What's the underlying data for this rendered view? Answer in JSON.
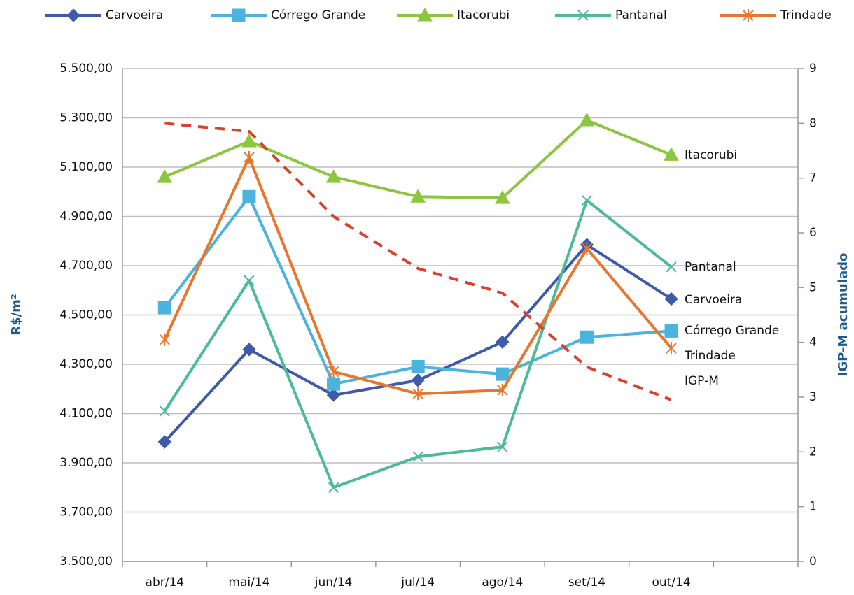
{
  "chart_data": {
    "type": "line",
    "ylabel": "R$/m²",
    "y2label": "IGP-M acumulado",
    "categories": [
      "abr/14",
      "mai/14",
      "jun/14",
      "jul/14",
      "ago/14",
      "set/14",
      "out/14",
      null
    ],
    "ylim": [
      3500,
      5500
    ],
    "yticks": [
      {
        "value": 3500,
        "label": "3.500,00"
      },
      {
        "value": 3700,
        "label": "3.700,00"
      },
      {
        "value": 3900,
        "label": "3.900,00"
      },
      {
        "value": 4100,
        "label": "4.100,00"
      },
      {
        "value": 4300,
        "label": "4.300,00"
      },
      {
        "value": 4500,
        "label": "4.500,00"
      },
      {
        "value": 4700,
        "label": "4.700,00"
      },
      {
        "value": 4900,
        "label": "4.900,00"
      },
      {
        "value": 5100,
        "label": "5.100,00"
      },
      {
        "value": 5300,
        "label": "5.300,00"
      },
      {
        "value": 5500,
        "label": "5.500,00"
      }
    ],
    "y2lim": [
      0,
      9
    ],
    "y2ticks": [
      0,
      1,
      2,
      3,
      4,
      5,
      6,
      7,
      8,
      9
    ],
    "grid": true,
    "legend": "top",
    "series": [
      {
        "name": "Carvoeira",
        "color": "#3f5aa8",
        "marker": "diamond",
        "values": [
          3985,
          4360,
          4175,
          4235,
          4390,
          4785,
          4565,
          null
        ]
      },
      {
        "name": "Córrego Grande",
        "color": "#4bb4de",
        "marker": "square",
        "values": [
          4530,
          4980,
          4220,
          4290,
          4260,
          4410,
          4435,
          null
        ]
      },
      {
        "name": "Itacorubi",
        "color": "#8cc63f",
        "marker": "triangle",
        "values": [
          5060,
          5205,
          5060,
          4980,
          4975,
          5290,
          5150,
          null
        ]
      },
      {
        "name": "Pantanal",
        "color": "#4dbb94",
        "marker": "x",
        "values": [
          4110,
          4640,
          3800,
          3925,
          3965,
          4965,
          4695,
          null
        ]
      },
      {
        "name": "Trindade",
        "color": "#e8772e",
        "marker": "asterisk",
        "values": [
          4400,
          5140,
          4270,
          4180,
          4195,
          4770,
          4365,
          null
        ]
      },
      {
        "name": "IGP-M",
        "color": "#d9412b",
        "marker": "none",
        "dashed": true,
        "axis": "y2",
        "values": [
          8.0,
          7.85,
          6.3,
          5.35,
          4.9,
          3.55,
          2.95,
          null
        ]
      }
    ]
  }
}
